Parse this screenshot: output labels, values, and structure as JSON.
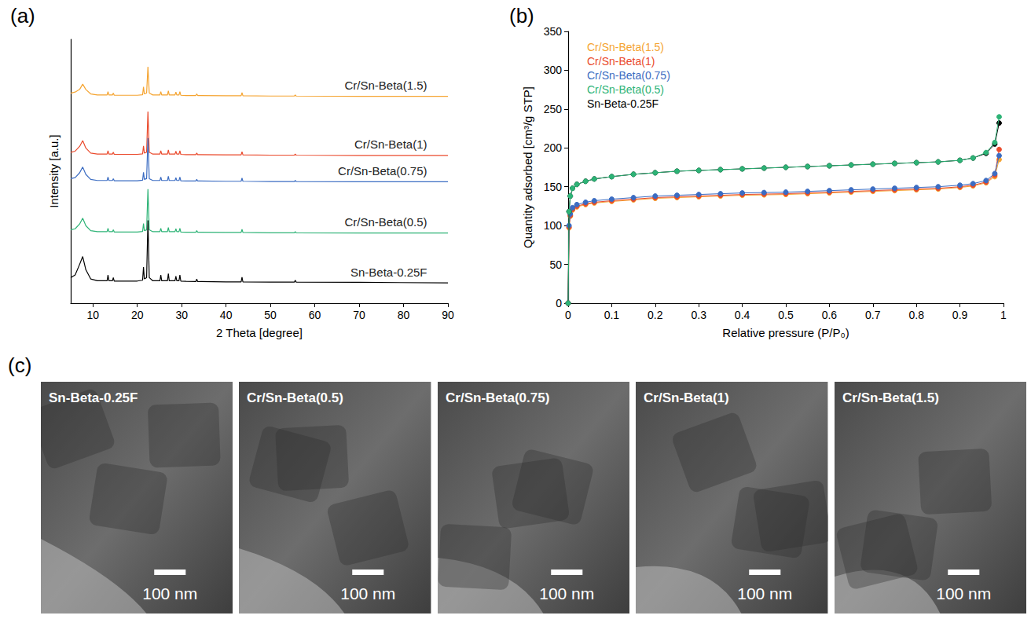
{
  "chart_data": [
    {
      "type": "line",
      "title": "(a)",
      "xlabel": "2 Theta [degree]",
      "ylabel": "Intensity [a.u.]",
      "x": [
        5,
        6.0,
        7.0,
        7.7,
        8.4,
        9.5,
        11,
        13.2,
        13.4,
        13.6,
        14.4,
        14.6,
        14.8,
        20,
        21.2,
        21.4,
        21.6,
        22.1,
        22.4,
        22.7,
        23.5,
        25.1,
        25.3,
        25.5,
        26.8,
        27.0,
        27.2,
        28.5,
        28.7,
        28.9,
        29.4,
        29.6,
        29.8,
        31,
        33.2,
        33.4,
        33.6,
        40,
        43.4,
        43.6,
        43.8,
        50,
        55.4,
        55.6,
        55.8,
        70,
        90
      ],
      "series": [
        {
          "name": "Cr/Sn-Beta(1.5)",
          "color": "#f5a431",
          "values": [
            79.6,
            80.0,
            81.0,
            83.0,
            81.0,
            79.3,
            78.9,
            78.9,
            80.2,
            78.9,
            78.9,
            79.6,
            78.8,
            78.8,
            79.0,
            82.0,
            79.3,
            79.6,
            89.6,
            79.6,
            78.9,
            78.9,
            80.2,
            78.9,
            78.9,
            80.5,
            78.9,
            78.9,
            80.0,
            78.9,
            78.9,
            80.2,
            78.8,
            78.7,
            78.7,
            79.3,
            78.7,
            78.6,
            78.6,
            79.8,
            78.6,
            78.5,
            78.5,
            78.9,
            78.5,
            78.4,
            78.4
          ]
        },
        {
          "name": "Cr/Sn-Beta(1)",
          "color": "#ea4a2c",
          "values": [
            57.2,
            57.6,
            59.4,
            61.6,
            58.8,
            56.9,
            56.5,
            56.5,
            57.8,
            56.5,
            56.5,
            57.2,
            56.4,
            56.4,
            56.6,
            59.6,
            56.9,
            57.2,
            72.6,
            57.2,
            56.5,
            56.5,
            57.8,
            56.5,
            56.5,
            58.1,
            56.5,
            56.5,
            57.6,
            56.5,
            56.5,
            57.8,
            56.4,
            56.3,
            56.3,
            56.9,
            56.3,
            56.2,
            56.2,
            57.4,
            56.2,
            56.1,
            56.1,
            56.5,
            56.1,
            56.0,
            56.0
          ]
        },
        {
          "name": "Cr/Sn-Beta(0.75)",
          "color": "#3b6cc2",
          "values": [
            47.2,
            47.6,
            49.4,
            51.6,
            48.8,
            46.9,
            46.5,
            46.5,
            47.8,
            46.5,
            46.5,
            47.2,
            46.4,
            46.4,
            46.6,
            49.6,
            46.9,
            47.2,
            62.6,
            47.2,
            46.5,
            46.5,
            47.8,
            46.5,
            46.5,
            48.1,
            46.5,
            46.5,
            47.6,
            46.5,
            46.5,
            47.8,
            46.4,
            46.3,
            46.3,
            46.9,
            46.3,
            46.2,
            46.2,
            47.4,
            46.2,
            46.1,
            46.1,
            46.5,
            46.1,
            46.0,
            46.0
          ]
        },
        {
          "name": "Cr/Sn-Beta(0.5)",
          "color": "#2db376",
          "values": [
            27.8,
            28.2,
            30.0,
            32.2,
            29.4,
            27.5,
            27.1,
            27.1,
            28.4,
            27.1,
            27.1,
            27.8,
            27.0,
            27.0,
            27.2,
            30.2,
            27.5,
            27.8,
            43.2,
            27.8,
            27.1,
            27.1,
            28.4,
            27.1,
            27.1,
            28.7,
            27.1,
            27.1,
            28.2,
            27.1,
            27.1,
            28.4,
            27.0,
            26.9,
            26.9,
            27.5,
            26.9,
            26.8,
            26.8,
            28.0,
            26.8,
            26.7,
            26.7,
            27.1,
            26.7,
            26.6,
            26.6
          ]
        },
        {
          "name": "Sn-Beta-0.25F",
          "color": "#000000",
          "values": [
            9.7,
            10.7,
            14.7,
            17.7,
            12.7,
            9.2,
            8.5,
            8.5,
            10.7,
            8.5,
            8.5,
            9.7,
            8.4,
            8.4,
            8.7,
            13.7,
            9.2,
            9.7,
            31.4,
            9.7,
            8.5,
            8.5,
            10.7,
            8.5,
            8.5,
            11.2,
            8.5,
            8.5,
            10.2,
            8.5,
            8.5,
            10.7,
            8.4,
            8.3,
            8.2,
            9.2,
            8.2,
            8.1,
            8.1,
            9.9,
            8.1,
            8.0,
            8.0,
            8.7,
            8.0,
            7.9,
            7.7
          ]
        }
      ],
      "xlim": [
        5,
        90
      ],
      "xticks": [
        10,
        20,
        30,
        40,
        50,
        60,
        70,
        80,
        90
      ],
      "ylim": [
        0,
        100
      ],
      "tick_labels": "x",
      "grid": false,
      "legend": false,
      "marker": "none",
      "line_style": "solid"
    },
    {
      "type": "line",
      "title": "(b)",
      "xlabel": "Relative pressure (P/P₀)",
      "ylabel": "Quantity adsorbed [cm³/g STP]",
      "x": [
        0,
        0.002,
        0.005,
        0.01,
        0.02,
        0.04,
        0.06,
        0.1,
        0.15,
        0.2,
        0.25,
        0.3,
        0.35,
        0.4,
        0.45,
        0.5,
        0.55,
        0.6,
        0.65,
        0.7,
        0.75,
        0.8,
        0.85,
        0.9,
        0.93,
        0.96,
        0.98,
        0.99
      ],
      "series": [
        {
          "name": "Cr/Sn-Beta(1.5)",
          "color": "#f5a431",
          "values": [
            0,
            97,
            112,
            120,
            124,
            127,
            129,
            131,
            133,
            135,
            136,
            137,
            138,
            139,
            139.5,
            140,
            141,
            142,
            143,
            144,
            145,
            146,
            147,
            149,
            151,
            155,
            163,
            185
          ]
        },
        {
          "name": "Cr/Sn-Beta(1)",
          "color": "#ea4a2c",
          "values": [
            0,
            98,
            113,
            121,
            125,
            128,
            130,
            132,
            134,
            136,
            137,
            138,
            139,
            140,
            140.5,
            141,
            142,
            143,
            144,
            145,
            146,
            147,
            148,
            150,
            152,
            156,
            165,
            198
          ]
        },
        {
          "name": "Cr/Sn-Beta(0.75)",
          "color": "#3b6cc2",
          "values": [
            0,
            100,
            115,
            123,
            127,
            130,
            132,
            134,
            136,
            138,
            139,
            140,
            141,
            142,
            142.5,
            143,
            144,
            145,
            146,
            147,
            148,
            149,
            150,
            152,
            154,
            158,
            167,
            190
          ]
        },
        {
          "name": "Sn-Beta-0.25F",
          "color": "#000000",
          "values": [
            0,
            118,
            138,
            148,
            153,
            157,
            160,
            163,
            166,
            168,
            170,
            171,
            172,
            173,
            174,
            175,
            176,
            177,
            178,
            179,
            180,
            181,
            182,
            184,
            187,
            193,
            205,
            232
          ]
        },
        {
          "name": "Cr/Sn-Beta(0.5)",
          "color": "#2db376",
          "values": [
            0,
            118,
            138,
            148,
            153,
            157,
            160,
            163,
            166,
            168,
            170,
            171,
            172,
            173,
            174,
            175,
            176,
            177,
            178,
            179,
            180,
            181,
            182,
            184,
            187,
            194,
            207,
            240
          ]
        }
      ],
      "legend_order": [
        "Cr/Sn-Beta(1.5)",
        "Cr/Sn-Beta(1)",
        "Cr/Sn-Beta(0.75)",
        "Cr/Sn-Beta(0.5)",
        "Sn-Beta-0.25F"
      ],
      "xlim": [
        0,
        1
      ],
      "xticks": [
        0,
        0.1,
        0.2,
        0.3,
        0.4,
        0.5,
        0.6,
        0.7,
        0.8,
        0.9,
        1
      ],
      "ylim": [
        0,
        350
      ],
      "yticks": [
        0,
        50,
        100,
        150,
        200,
        250,
        300,
        350
      ],
      "grid": false,
      "legend": "upper left",
      "marker": "circle",
      "line_style": "solid"
    }
  ],
  "images": {
    "title": "(c)",
    "panels": [
      {
        "label": "Sn-Beta-0.25F",
        "scale_bar": "100 nm"
      },
      {
        "label": "Cr/Sn-Beta(0.5)",
        "scale_bar": "100 nm"
      },
      {
        "label": "Cr/Sn-Beta(0.75)",
        "scale_bar": "100 nm"
      },
      {
        "label": "Cr/Sn-Beta(1)",
        "scale_bar": "100 nm"
      },
      {
        "label": "Cr/Sn-Beta(1.5)",
        "scale_bar": "100 nm"
      }
    ]
  }
}
